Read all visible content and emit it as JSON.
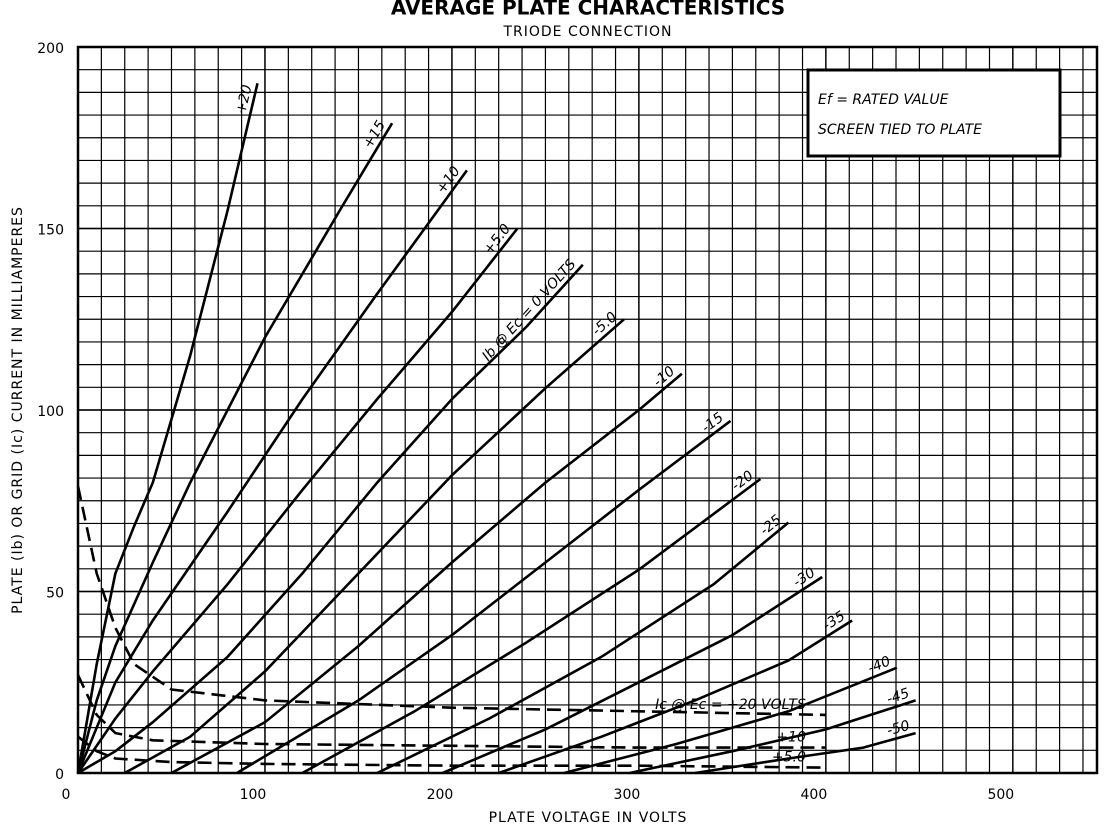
{
  "chart_data": {
    "type": "line",
    "title": "AVERAGE PLATE CHARACTERISTICS",
    "subtitle": "TRIODE CONNECTION",
    "x_label": "PLATE VOLTAGE IN VOLTS",
    "y_label": "PLATE (Ib) OR GRID (Ic) CURRENT IN MILLIAMPERES",
    "note": [
      "Ef = RATED VALUE",
      "SCREEN TIED TO PLATE"
    ],
    "xlim": [
      0,
      545
    ],
    "ylim": [
      0,
      200
    ],
    "xticks": [
      0,
      100,
      200,
      300,
      400,
      500
    ],
    "yticks": [
      0,
      50,
      100,
      150,
      200
    ],
    "grid": true,
    "color": "#000000",
    "series": [
      {
        "name": "+20",
        "style": "solid",
        "x": [
          0,
          10,
          20,
          30,
          40,
          60,
          80,
          96
        ],
        "values": [
          0,
          30,
          55,
          68,
          80,
          115,
          155,
          190
        ]
      },
      {
        "name": "+15",
        "style": "solid",
        "x": [
          0,
          10,
          20,
          40,
          60,
          100,
          140,
          168
        ],
        "values": [
          0,
          20,
          35,
          58,
          80,
          120,
          155,
          179
        ]
      },
      {
        "name": "+10",
        "style": "solid",
        "x": [
          0,
          20,
          40,
          80,
          120,
          160,
          208
        ],
        "values": [
          0,
          25,
          42,
          72,
          103,
          132,
          166
        ]
      },
      {
        "name": "+5.0",
        "style": "solid",
        "x": [
          0,
          20,
          40,
          80,
          120,
          160,
          200,
          235
        ],
        "values": [
          0,
          15,
          28,
          52,
          78,
          103,
          127,
          150
        ]
      },
      {
        "name": "Ib @ Ec = 0 VOLTS",
        "style": "solid",
        "x": [
          0,
          20,
          40,
          80,
          120,
          160,
          200,
          240,
          270
        ],
        "values": [
          0,
          6,
          14,
          32,
          55,
          80,
          103,
          123,
          140
        ]
      },
      {
        "name": "-5.0",
        "style": "solid",
        "x": [
          25,
          60,
          100,
          150,
          200,
          250,
          292
        ],
        "values": [
          0,
          10,
          28,
          55,
          82,
          106,
          125
        ]
      },
      {
        "name": "-10",
        "style": "solid",
        "x": [
          50,
          100,
          150,
          200,
          250,
          300,
          323
        ],
        "values": [
          0,
          14,
          35,
          58,
          80,
          100,
          110
        ]
      },
      {
        "name": "-15",
        "style": "solid",
        "x": [
          85,
          150,
          200,
          250,
          300,
          349
        ],
        "values": [
          0,
          20,
          38,
          58,
          78,
          97
        ]
      },
      {
        "name": "-20",
        "style": "solid",
        "x": [
          120,
          180,
          240,
          300,
          365
        ],
        "values": [
          0,
          17,
          36,
          56,
          81
        ]
      },
      {
        "name": "-25",
        "style": "solid",
        "x": [
          160,
          220,
          280,
          340,
          380
        ],
        "values": [
          0,
          15,
          32,
          52,
          69
        ]
      },
      {
        "name": "-30",
        "style": "solid",
        "x": [
          195,
          250,
          300,
          350,
          398
        ],
        "values": [
          0,
          12,
          25,
          38,
          54
        ]
      },
      {
        "name": "-35",
        "style": "solid",
        "x": [
          225,
          280,
          330,
          380,
          414
        ],
        "values": [
          0,
          10,
          20,
          31,
          42
        ]
      },
      {
        "name": "-40",
        "style": "solid",
        "x": [
          260,
          320,
          380,
          438
        ],
        "values": [
          0,
          8,
          17,
          29
        ]
      },
      {
        "name": "-45",
        "style": "solid",
        "x": [
          295,
          350,
          400,
          448
        ],
        "values": [
          0,
          6,
          12,
          20
        ]
      },
      {
        "name": "-50",
        "style": "solid",
        "x": [
          330,
          380,
          420,
          448
        ],
        "values": [
          0,
          4,
          7,
          11
        ]
      },
      {
        "name": "Ic @ Ec = +20 VOLTS",
        "style": "dashed",
        "x": [
          0,
          10,
          20,
          30,
          50,
          100,
          200,
          300,
          400
        ],
        "values": [
          79,
          55,
          40,
          30,
          23,
          20,
          18,
          17,
          16
        ]
      },
      {
        "name": "+10",
        "style": "dashed",
        "x": [
          0,
          10,
          20,
          40,
          100,
          200,
          300,
          400
        ],
        "values": [
          27,
          16,
          11,
          9,
          8,
          7.5,
          7,
          7
        ]
      },
      {
        "name": "+5.0",
        "style": "dashed",
        "x": [
          0,
          10,
          20,
          50,
          100,
          200,
          300,
          400
        ],
        "values": [
          10,
          6,
          4,
          3,
          2.5,
          2,
          2,
          1.5
        ]
      }
    ]
  }
}
